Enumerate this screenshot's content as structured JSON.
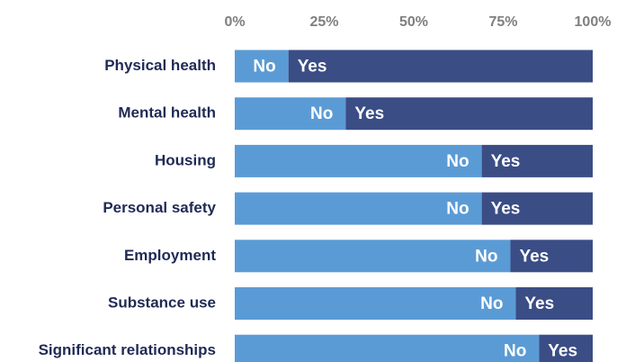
{
  "chart_data": {
    "type": "bar",
    "orientation": "horizontal",
    "stacked": true,
    "percent_stacked": true,
    "categories": [
      "Physical health",
      "Mental health",
      "Housing",
      "Personal safety",
      "Employment ",
      "Substance use",
      "Significant relationships"
    ],
    "series": [
      {
        "name": "No",
        "values": [
          15,
          31,
          69,
          69,
          77,
          78.5,
          85
        ],
        "color": "#5b9bd5"
      },
      {
        "name": "Yes",
        "values": [
          85,
          69,
          31,
          31,
          23,
          21.5,
          15
        ],
        "color": "#3a4d85"
      }
    ],
    "x_ticks": [
      "0%",
      "25%",
      "50%",
      "75%",
      "100%"
    ],
    "xlim": [
      0,
      100
    ],
    "xaxis_position": "top",
    "grid": false,
    "legend": "none",
    "title": "",
    "xlabel": "",
    "ylabel": ""
  }
}
